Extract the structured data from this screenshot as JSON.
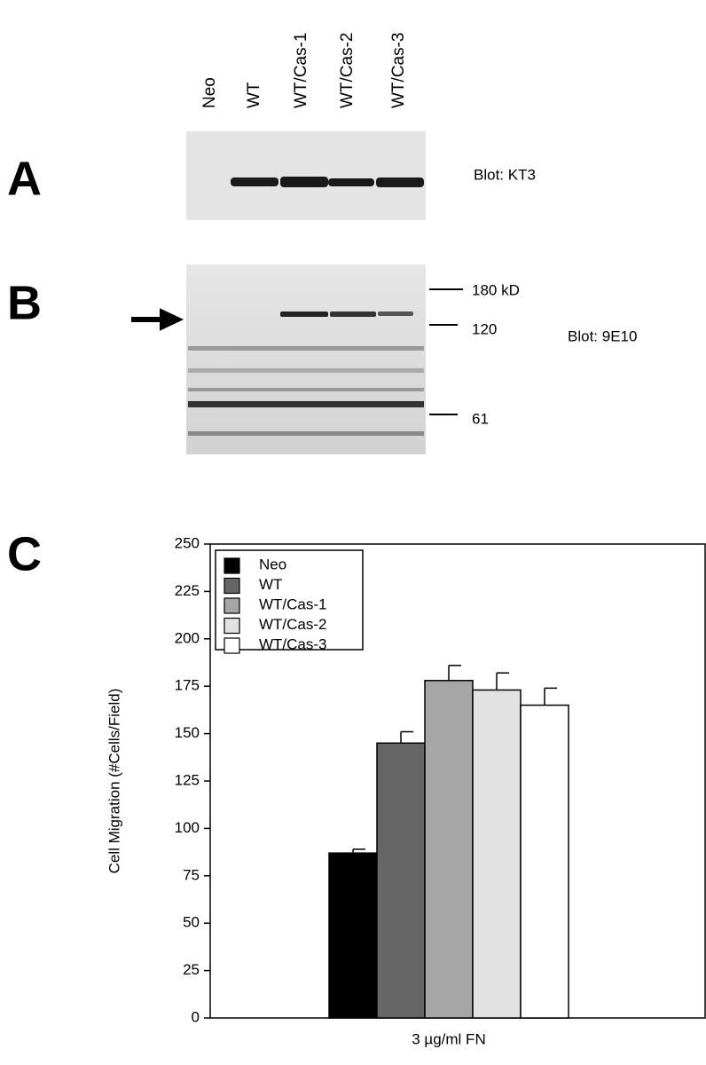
{
  "panels": {
    "A": {
      "label": "A",
      "blot": "Blot: KT3"
    },
    "B": {
      "label": "B",
      "blot": "Blot: 9E10",
      "markers": [
        "180 kD",
        "120",
        "61"
      ]
    },
    "C": {
      "label": "C"
    }
  },
  "lanes": [
    "Neo",
    "WT",
    "WT/Cas-1",
    "WT/Cas-2",
    "WT/Cas-3"
  ],
  "chart_data": {
    "type": "bar",
    "y_label": "Cell Migration (#Cells/Field)",
    "categories": [
      "3 µg/ml FN"
    ],
    "series": [
      {
        "name": "Neo",
        "color": "#000000",
        "values": [
          87
        ],
        "errors": [
          2
        ]
      },
      {
        "name": "WT",
        "color": "#666666",
        "values": [
          145
        ],
        "errors": [
          6
        ]
      },
      {
        "name": "WT/Cas-1",
        "color": "#a6a6a6",
        "values": [
          178
        ],
        "errors": [
          8
        ]
      },
      {
        "name": "WT/Cas-2",
        "color": "#e2e2e2",
        "values": [
          173
        ],
        "errors": [
          9
        ]
      },
      {
        "name": "WT/Cas-3",
        "color": "#ffffff",
        "values": [
          165
        ],
        "errors": [
          9
        ]
      }
    ],
    "ylim": [
      0,
      250
    ],
    "yticks": [
      0,
      25,
      50,
      75,
      100,
      125,
      150,
      175,
      200,
      225,
      250
    ],
    "legend": "upper left"
  }
}
